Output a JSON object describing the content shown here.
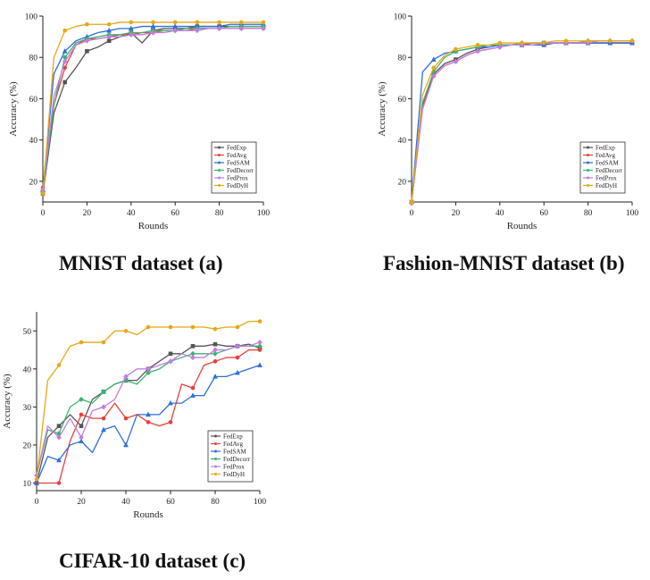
{
  "series_colors": {
    "FedExp": "#555555",
    "FedAvg": "#e8403a",
    "FedSAM": "#2f6fd6",
    "FedDecorr": "#3cb371",
    "FedProx": "#c27de0",
    "FedDyH": "#e6a817"
  },
  "captions": {
    "a": "MNIST dataset (a)",
    "b": "Fashion-MNIST dataset (b)",
    "c": "CIFAR-10 dataset (c)"
  },
  "chart_data": [
    {
      "type": "line",
      "xlabel": "Rounds",
      "ylabel": "Accuracy (%)",
      "xlim": [
        0,
        100
      ],
      "ylim": [
        10,
        100
      ],
      "xticks": [
        0,
        20,
        40,
        60,
        80,
        100
      ],
      "yticks": [
        20,
        40,
        60,
        80,
        100
      ],
      "grid": false,
      "legend": "bottom-right",
      "x": [
        0,
        5,
        10,
        15,
        20,
        25,
        30,
        35,
        40,
        45,
        50,
        55,
        60,
        65,
        70,
        75,
        80,
        85,
        90,
        95,
        100
      ],
      "series": [
        {
          "name": "FedExp",
          "values": [
            14,
            53,
            68,
            75,
            83,
            85,
            88,
            90,
            92,
            87,
            93,
            94,
            94,
            94,
            95,
            95,
            95,
            95,
            95,
            95,
            95
          ]
        },
        {
          "name": "FedAvg",
          "values": [
            17,
            57,
            75,
            86,
            89,
            89,
            90,
            91,
            91,
            92,
            92,
            93,
            93,
            93,
            94,
            94,
            94,
            94,
            94,
            94,
            94
          ]
        },
        {
          "name": "FedSAM",
          "values": [
            16,
            72,
            83,
            88,
            90,
            92,
            93,
            94,
            94,
            95,
            95,
            95,
            95,
            95,
            95,
            95,
            95,
            96,
            96,
            96,
            96
          ]
        },
        {
          "name": "FedDecorr",
          "values": [
            15,
            57,
            80,
            87,
            89,
            90,
            91,
            91,
            92,
            92,
            93,
            93,
            93,
            94,
            94,
            94,
            94,
            95,
            95,
            95,
            95
          ]
        },
        {
          "name": "FedProx",
          "values": [
            16,
            61,
            78,
            86,
            88,
            89,
            90,
            90,
            91,
            91,
            92,
            92,
            93,
            93,
            93,
            94,
            94,
            94,
            94,
            94,
            94
          ]
        },
        {
          "name": "FedDyH",
          "values": [
            14,
            80,
            93,
            95,
            96,
            96,
            96,
            97,
            97,
            97,
            97,
            97,
            97,
            97,
            97,
            97,
            97,
            97,
            97,
            97,
            97
          ]
        }
      ]
    },
    {
      "type": "line",
      "xlabel": "Rounds",
      "ylabel": "Accuracy (%)",
      "xlim": [
        0,
        100
      ],
      "ylim": [
        10,
        100
      ],
      "xticks": [
        0,
        20,
        40,
        60,
        80,
        100
      ],
      "yticks": [
        20,
        40,
        60,
        80,
        100
      ],
      "grid": false,
      "legend": "bottom-right",
      "x": [
        0,
        5,
        10,
        15,
        20,
        25,
        30,
        35,
        40,
        45,
        50,
        55,
        60,
        65,
        70,
        75,
        80,
        85,
        90,
        95,
        100
      ],
      "series": [
        {
          "name": "FedExp",
          "values": [
            10,
            57,
            72,
            77,
            79,
            82,
            84,
            85,
            86,
            86,
            86,
            87,
            87,
            87,
            87,
            87,
            87,
            87,
            87,
            87,
            87
          ]
        },
        {
          "name": "FedAvg",
          "values": [
            10,
            56,
            71,
            76,
            78,
            81,
            83,
            84,
            85,
            86,
            86,
            86,
            86,
            87,
            87,
            87,
            87,
            87,
            87,
            87,
            87
          ]
        },
        {
          "name": "FedSAM",
          "values": [
            10,
            73,
            79,
            82,
            83,
            84,
            85,
            85,
            86,
            86,
            86,
            86,
            86,
            87,
            87,
            87,
            87,
            87,
            87,
            87,
            87
          ]
        },
        {
          "name": "FedDecorr",
          "values": [
            10,
            58,
            73,
            80,
            83,
            84,
            85,
            86,
            86,
            86,
            87,
            87,
            87,
            87,
            87,
            87,
            88,
            88,
            88,
            88,
            88
          ]
        },
        {
          "name": "FedProx",
          "values": [
            10,
            55,
            71,
            76,
            78,
            81,
            83,
            84,
            85,
            86,
            86,
            86,
            87,
            87,
            87,
            87,
            87,
            88,
            88,
            88,
            88
          ]
        },
        {
          "name": "FedDyH",
          "values": [
            10,
            62,
            75,
            81,
            84,
            85,
            86,
            86,
            87,
            87,
            87,
            87,
            87,
            88,
            88,
            88,
            88,
            88,
            88,
            88,
            88
          ]
        }
      ]
    },
    {
      "type": "line",
      "xlabel": "Rounds",
      "ylabel": "Accuracy (%)",
      "xlim": [
        0,
        100
      ],
      "ylim": [
        8,
        55
      ],
      "xticks": [
        0,
        20,
        40,
        60,
        80,
        100
      ],
      "yticks": [
        10,
        20,
        30,
        40,
        50
      ],
      "grid": false,
      "legend": "bottom-right",
      "x": [
        0,
        5,
        10,
        15,
        20,
        25,
        30,
        35,
        40,
        45,
        50,
        55,
        60,
        65,
        70,
        75,
        80,
        85,
        90,
        95,
        100
      ],
      "series": [
        {
          "name": "FedExp",
          "values": [
            10,
            22,
            25,
            28,
            25,
            32,
            34,
            36,
            37,
            37,
            40,
            42,
            44,
            44,
            46,
            46,
            46.5,
            46,
            46,
            46.5,
            45.5
          ]
        },
        {
          "name": "FedAvg",
          "values": [
            10,
            10,
            10,
            21,
            28,
            27,
            27,
            31,
            27,
            28,
            26,
            25,
            26,
            36,
            35,
            41,
            42,
            43,
            43,
            45,
            45
          ]
        },
        {
          "name": "FedSAM",
          "values": [
            10,
            17,
            16,
            20,
            21,
            18,
            24,
            25,
            20,
            28,
            28,
            28,
            31,
            31,
            33,
            33,
            38,
            38,
            39,
            40,
            41
          ]
        },
        {
          "name": "FedDecorr",
          "values": [
            12,
            24,
            23,
            30,
            32,
            31,
            34,
            36,
            37,
            36,
            39,
            40,
            42,
            43,
            44,
            44,
            44,
            45,
            46,
            46,
            46
          ]
        },
        {
          "name": "FedProx",
          "values": [
            12,
            25,
            22,
            27,
            22,
            29,
            30,
            32,
            38,
            40,
            40,
            41,
            42,
            44,
            43,
            43,
            45,
            45,
            46,
            46,
            47
          ]
        },
        {
          "name": "FedDyH",
          "values": [
            11,
            37,
            41,
            46,
            47,
            47,
            47,
            50,
            50,
            49,
            51,
            51,
            51,
            51,
            51,
            51,
            50.5,
            51,
            51,
            52.5,
            52.5
          ]
        }
      ]
    }
  ]
}
